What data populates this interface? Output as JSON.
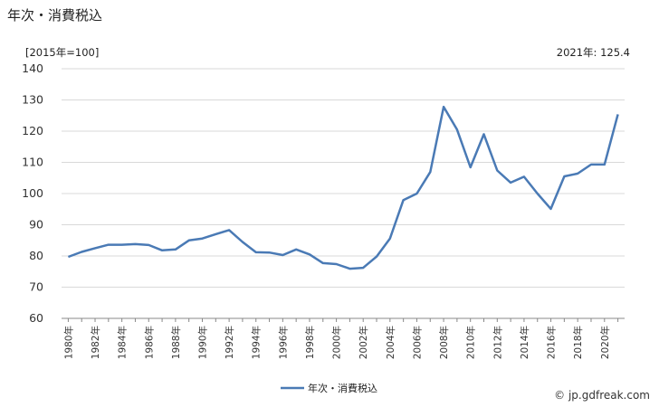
{
  "chart_data": {
    "type": "line",
    "title": "年次・消費税込",
    "unit_label": "[2015年=100]",
    "latest_label": "2021年: 125.4",
    "credit": "© jp.gdfreak.com",
    "ylim": [
      60,
      140
    ],
    "yticks": [
      60,
      70,
      80,
      90,
      100,
      110,
      120,
      130,
      140
    ],
    "grid": true,
    "legend_position": "bottom-center",
    "x": [
      1980,
      1981,
      1982,
      1983,
      1984,
      1985,
      1986,
      1987,
      1988,
      1989,
      1990,
      1991,
      1992,
      1993,
      1994,
      1995,
      1996,
      1997,
      1998,
      1999,
      2000,
      2001,
      2002,
      2003,
      2004,
      2005,
      2006,
      2007,
      2008,
      2009,
      2010,
      2011,
      2012,
      2013,
      2014,
      2015,
      2016,
      2017,
      2018,
      2019,
      2020,
      2021
    ],
    "x_tick_labels": [
      "1980年",
      "1982年",
      "1984年",
      "1986年",
      "1988年",
      "1990年",
      "1992年",
      "1994年",
      "1996年",
      "1998年",
      "2000年",
      "2002年",
      "2004年",
      "2006年",
      "2008年",
      "2010年",
      "2012年",
      "2014年",
      "2016年",
      "2018年",
      "2020年"
    ],
    "series": [
      {
        "name": "年次・消費税込",
        "color": "#4a7ab5",
        "values": [
          79.7,
          81.3,
          82.5,
          83.6,
          83.6,
          83.8,
          83.5,
          81.8,
          82.1,
          85.0,
          85.6,
          87.0,
          88.3,
          84.5,
          81.2,
          81.1,
          80.3,
          82.1,
          80.5,
          77.7,
          77.4,
          75.9,
          76.2,
          79.8,
          85.6,
          97.9,
          100.0,
          106.9,
          127.8,
          120.5,
          108.4,
          119.0,
          107.4,
          103.5,
          105.4,
          100.0,
          95.1,
          105.5,
          106.4,
          109.3,
          109.3,
          125.4
        ]
      }
    ]
  }
}
